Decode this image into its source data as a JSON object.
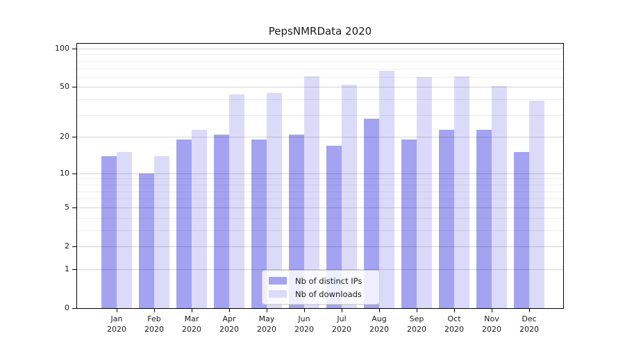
{
  "chart_data": {
    "type": "bar",
    "title": "PepsNMRData 2020",
    "y_scale": "log1p",
    "ylim": [
      0,
      112
    ],
    "grid": "horizontal",
    "legend_position": "bottom-center",
    "year_label": "2020",
    "months": [
      "Jan",
      "Feb",
      "Mar",
      "Apr",
      "May",
      "Jun",
      "Jul",
      "Aug",
      "Sep",
      "Oct",
      "Nov",
      "Dec"
    ],
    "categories": [
      "Jan 2020",
      "Feb 2020",
      "Mar 2020",
      "Apr 2020",
      "May 2020",
      "Jun 2020",
      "Jul 2020",
      "Aug 2020",
      "Sep 2020",
      "Oct 2020",
      "Nov 2020",
      "Dec 2020"
    ],
    "y_ticks": [
      0,
      1,
      2,
      5,
      10,
      20,
      50,
      100
    ],
    "y_minor_gridlines": [
      3,
      4,
      6,
      7,
      8,
      9,
      30,
      40,
      60,
      70,
      80,
      90
    ],
    "series": [
      {
        "name": "Nb of distinct IPs",
        "color": "#a3a3f2",
        "values": [
          14,
          10,
          19,
          21,
          19,
          21,
          17,
          28,
          19,
          23,
          23,
          15
        ]
      },
      {
        "name": "Nb of downloads",
        "color": "#dbdbf9",
        "values": [
          15,
          14,
          23,
          44,
          45,
          61,
          52,
          67,
          60,
          61,
          51,
          39
        ]
      }
    ]
  }
}
